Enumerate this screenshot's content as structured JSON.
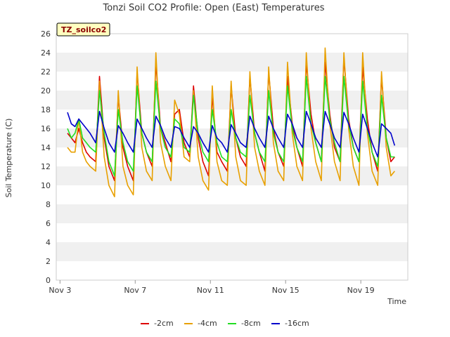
{
  "chart_data": {
    "type": "line",
    "title": "Tonzi Soil CO2 Profile: Open (East) Temperatures",
    "xlabel": "Time",
    "ylabel": "Soil Temperature (C)",
    "badge": "TZ_soilco2",
    "xlim": [
      2.8,
      21.5
    ],
    "ylim": [
      0,
      26
    ],
    "x_ticks": [
      {
        "value": 3,
        "label": "Nov 3"
      },
      {
        "value": 7,
        "label": "Nov 7"
      },
      {
        "value": 11,
        "label": "Nov 11"
      },
      {
        "value": 15,
        "label": "Nov 15"
      },
      {
        "value": 19,
        "label": "Nov 19"
      }
    ],
    "y_ticks": [
      0,
      2,
      4,
      6,
      8,
      10,
      12,
      14,
      16,
      18,
      20,
      22,
      24,
      26
    ],
    "grid": "horizontal bands",
    "legend_position": "bottom",
    "series": [
      {
        "name": "-2cm",
        "color": "#dd0000",
        "x": [
          3.4,
          3.6,
          3.8,
          4.0,
          4.2,
          4.4,
          4.6,
          4.9,
          5.1,
          5.35,
          5.6,
          5.9,
          6.1,
          6.35,
          6.6,
          6.9,
          7.1,
          7.35,
          7.6,
          7.9,
          8.1,
          8.35,
          8.6,
          8.9,
          9.1,
          9.35,
          9.6,
          9.9,
          10.1,
          10.35,
          10.6,
          10.9,
          11.1,
          11.35,
          11.6,
          11.9,
          12.1,
          12.35,
          12.6,
          12.9,
          13.1,
          13.35,
          13.6,
          13.9,
          14.1,
          14.35,
          14.6,
          14.9,
          15.1,
          15.35,
          15.6,
          15.9,
          16.1,
          16.35,
          16.6,
          16.9,
          17.1,
          17.35,
          17.6,
          17.9,
          18.1,
          18.35,
          18.6,
          18.9,
          19.1,
          19.35,
          19.6,
          19.9,
          20.1,
          20.35,
          20.6,
          20.8
        ],
        "y": [
          15.5,
          15.0,
          14.5,
          16.0,
          14.5,
          13.5,
          13.0,
          12.5,
          21.5,
          15.0,
          12.0,
          10.5,
          19.5,
          14.0,
          12.0,
          10.5,
          22.0,
          15.5,
          13.5,
          12.0,
          23.0,
          16.0,
          14.5,
          12.5,
          17.5,
          18.0,
          14.5,
          13.0,
          20.5,
          15.0,
          12.5,
          11.0,
          19.5,
          13.5,
          12.5,
          11.5,
          20.5,
          15.0,
          13.0,
          12.0,
          21.5,
          15.5,
          13.5,
          11.5,
          22.0,
          16.0,
          13.5,
          12.0,
          21.5,
          16.5,
          14.0,
          12.0,
          23.0,
          17.5,
          14.5,
          12.5,
          23.0,
          17.5,
          14.0,
          12.5,
          23.5,
          17.0,
          14.0,
          12.5,
          22.5,
          17.0,
          13.5,
          11.5,
          21.5,
          15.0,
          12.5,
          13.0
        ]
      },
      {
        "name": "-4cm",
        "color": "#e8a000",
        "x": [
          3.4,
          3.6,
          3.8,
          4.0,
          4.2,
          4.4,
          4.6,
          4.9,
          5.1,
          5.35,
          5.6,
          5.9,
          6.1,
          6.35,
          6.6,
          6.9,
          7.1,
          7.35,
          7.6,
          7.9,
          8.1,
          8.35,
          8.6,
          8.9,
          9.1,
          9.35,
          9.6,
          9.9,
          10.1,
          10.35,
          10.6,
          10.9,
          11.1,
          11.35,
          11.6,
          11.9,
          12.1,
          12.35,
          12.6,
          12.9,
          13.1,
          13.35,
          13.6,
          13.9,
          14.1,
          14.35,
          14.6,
          14.9,
          15.1,
          15.35,
          15.6,
          15.9,
          16.1,
          16.35,
          16.6,
          16.9,
          17.1,
          17.35,
          17.6,
          17.9,
          18.1,
          18.35,
          18.6,
          18.9,
          19.1,
          19.35,
          19.6,
          19.9,
          20.1,
          20.35,
          20.6,
          20.8
        ],
        "y": [
          14.0,
          13.5,
          13.5,
          17.0,
          13.5,
          12.5,
          12.0,
          11.5,
          21.0,
          13.0,
          10.0,
          8.8,
          20.0,
          12.0,
          10.0,
          9.0,
          22.5,
          14.0,
          11.5,
          10.5,
          24.0,
          14.5,
          12.0,
          10.5,
          19.0,
          17.5,
          13.0,
          12.5,
          20.0,
          13.0,
          10.5,
          9.5,
          20.5,
          12.5,
          10.5,
          10.0,
          21.0,
          13.0,
          10.5,
          10.0,
          22.0,
          14.0,
          11.5,
          10.0,
          22.5,
          14.5,
          11.5,
          10.5,
          23.0,
          15.5,
          12.0,
          10.5,
          24.0,
          16.0,
          12.5,
          10.5,
          24.5,
          16.5,
          12.5,
          10.5,
          24.0,
          16.0,
          12.0,
          10.0,
          24.0,
          15.5,
          11.5,
          10.0,
          22.0,
          14.0,
          11.0,
          11.5
        ]
      },
      {
        "name": "-8cm",
        "color": "#22dd22",
        "x": [
          3.4,
          3.6,
          3.8,
          4.0,
          4.2,
          4.4,
          4.6,
          4.9,
          5.1,
          5.35,
          5.6,
          5.9,
          6.1,
          6.35,
          6.6,
          6.9,
          7.1,
          7.35,
          7.6,
          7.9,
          8.1,
          8.35,
          8.6,
          8.9,
          9.1,
          9.35,
          9.6,
          9.9,
          10.1,
          10.35,
          10.6,
          10.9,
          11.1,
          11.35,
          11.6,
          11.9,
          12.1,
          12.35,
          12.6,
          12.9,
          13.1,
          13.35,
          13.6,
          13.9,
          14.1,
          14.35,
          14.6,
          14.9,
          15.1,
          15.35,
          15.6,
          15.9,
          16.1,
          16.35,
          16.6,
          16.9,
          17.1,
          17.35,
          17.6,
          17.9,
          18.1,
          18.35,
          18.6,
          18.9,
          19.1,
          19.35,
          19.6,
          19.9,
          20.1,
          20.35,
          20.6,
          20.8
        ],
        "y": [
          16.0,
          15.0,
          15.5,
          17.0,
          15.0,
          14.5,
          14.0,
          13.5,
          20.0,
          15.5,
          12.5,
          11.0,
          18.0,
          14.5,
          12.5,
          11.5,
          20.5,
          15.5,
          13.5,
          12.5,
          21.0,
          16.0,
          14.0,
          13.0,
          17.0,
          16.5,
          14.0,
          13.5,
          19.5,
          15.5,
          13.5,
          12.5,
          18.0,
          14.5,
          13.0,
          12.5,
          18.0,
          15.0,
          13.5,
          13.0,
          19.5,
          15.5,
          13.5,
          12.5,
          20.0,
          15.5,
          13.5,
          12.5,
          20.5,
          16.0,
          14.0,
          12.5,
          21.5,
          16.5,
          14.5,
          12.5,
          21.5,
          17.0,
          14.5,
          12.5,
          21.5,
          16.5,
          14.0,
          12.5,
          21.0,
          16.0,
          13.5,
          12.0,
          19.5,
          15.0,
          13.0,
          13.0
        ]
      },
      {
        "name": "-16cm",
        "color": "#0000cc",
        "x": [
          3.4,
          3.6,
          3.8,
          4.0,
          4.2,
          4.4,
          4.6,
          4.9,
          5.1,
          5.35,
          5.6,
          5.9,
          6.1,
          6.35,
          6.6,
          6.9,
          7.1,
          7.35,
          7.6,
          7.9,
          8.1,
          8.35,
          8.6,
          8.9,
          9.1,
          9.35,
          9.6,
          9.9,
          10.1,
          10.35,
          10.6,
          10.9,
          11.1,
          11.35,
          11.6,
          11.9,
          12.1,
          12.35,
          12.6,
          12.9,
          13.1,
          13.35,
          13.6,
          13.9,
          14.1,
          14.35,
          14.6,
          14.9,
          15.1,
          15.35,
          15.6,
          15.9,
          16.1,
          16.35,
          16.6,
          16.9,
          17.1,
          17.35,
          17.6,
          17.9,
          18.1,
          18.35,
          18.6,
          18.9,
          19.1,
          19.35,
          19.6,
          19.9,
          20.1,
          20.35,
          20.6,
          20.8
        ],
        "y": [
          17.7,
          16.5,
          16.2,
          17.0,
          16.5,
          16.0,
          15.5,
          14.5,
          17.8,
          16.0,
          14.5,
          13.5,
          16.3,
          15.5,
          14.5,
          13.5,
          17.0,
          16.0,
          15.0,
          14.0,
          17.3,
          16.3,
          15.0,
          14.0,
          16.2,
          16.0,
          15.0,
          14.0,
          16.2,
          15.5,
          14.5,
          13.5,
          16.3,
          15.0,
          14.5,
          13.5,
          16.4,
          15.5,
          14.5,
          14.0,
          17.3,
          16.0,
          15.0,
          14.0,
          17.3,
          16.0,
          15.0,
          14.0,
          17.5,
          16.5,
          15.0,
          14.0,
          17.8,
          16.5,
          15.0,
          14.0,
          17.8,
          16.5,
          15.0,
          14.0,
          17.7,
          16.5,
          15.0,
          13.5,
          17.5,
          16.0,
          14.5,
          13.0,
          16.5,
          16.0,
          15.5,
          14.2
        ]
      }
    ]
  }
}
